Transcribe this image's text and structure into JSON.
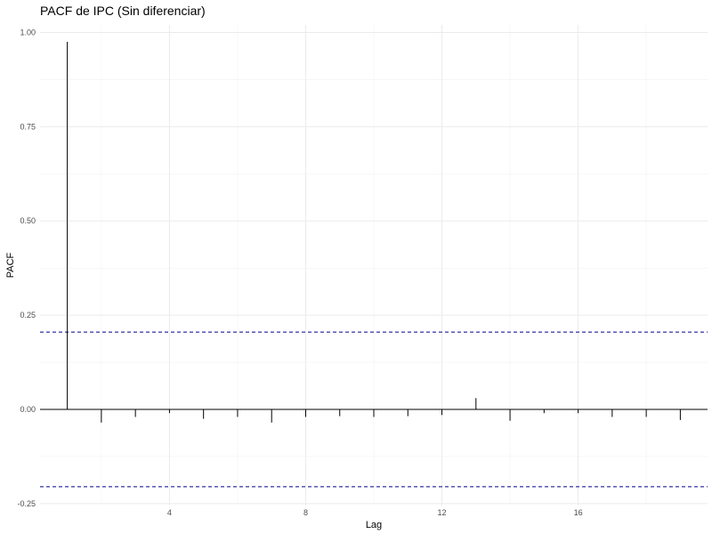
{
  "chart_data": {
    "type": "line",
    "title": "PACF de IPC (Sin diferenciar)",
    "xlabel": "Lag",
    "ylabel": "PACF",
    "xlim": [
      0.2,
      19.8
    ],
    "ylim": [
      -0.255,
      1.02
    ],
    "x_ticks": [
      4,
      8,
      12,
      16
    ],
    "x_tick_labels": [
      "4",
      "8",
      "12",
      "16"
    ],
    "y_ticks": [
      -0.25,
      0,
      0.25,
      0.5,
      0.75,
      1.0
    ],
    "y_tick_labels": [
      "-0.25",
      "0.00",
      "0.25",
      "0.50",
      "0.75",
      "1.00"
    ],
    "grid": true,
    "confidence_bound": 0.205,
    "series": [
      {
        "x": [
          1,
          2,
          3,
          4,
          5,
          6,
          7,
          8,
          9,
          10,
          11,
          12,
          13,
          14,
          15,
          16,
          17,
          18,
          19
        ],
        "values": [
          0.975,
          -0.035,
          -0.02,
          -0.01,
          -0.025,
          -0.02,
          -0.035,
          -0.02,
          -0.018,
          -0.02,
          -0.018,
          -0.015,
          0.03,
          -0.03,
          -0.01,
          -0.01,
          -0.02,
          -0.02,
          -0.028
        ]
      }
    ],
    "colors": {
      "stem": "#000000",
      "bound": "#00008b",
      "grid_major": "#ebebeb",
      "grid_minor": "#f2f2f2",
      "background": "#ffffff"
    }
  }
}
